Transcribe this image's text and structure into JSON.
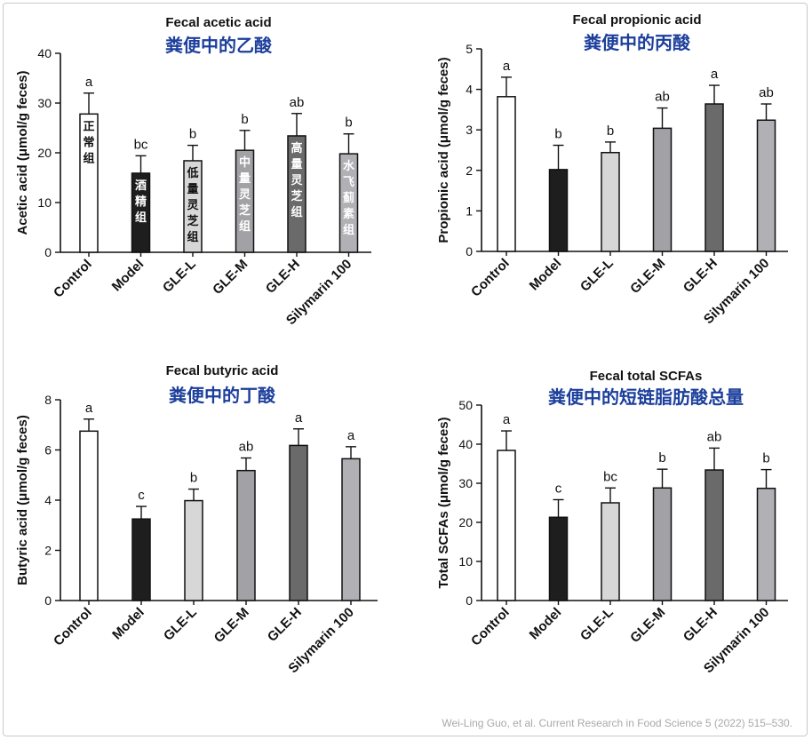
{
  "colors": {
    "bar_fills": [
      "#ffffff",
      "#1e1e1e",
      "#d7d7d7",
      "#a1a1a6",
      "#6a6a6a",
      "#b0b0b5"
    ],
    "in_bar_text": [
      "#111111",
      "#ffffff",
      "#111111",
      "#ffffff",
      "#ffffff",
      "#ffffff"
    ],
    "subtitle": "#1c3f9c"
  },
  "credit": "Wei-Ling Guo, et al. Current Research in Food Science 5 (2022) 515–530.",
  "chart_data": [
    {
      "type": "bar",
      "title": "Fecal acetic acid",
      "subtitle": "粪便中的乙酸",
      "ylabel": "Acetic acid (μmol/g feces)",
      "xlabel": "",
      "ylim": [
        0,
        40
      ],
      "yticks": [
        0,
        10,
        20,
        30,
        40
      ],
      "categories": [
        "Control",
        "Model",
        "GLE-L",
        "GLE-M",
        "GLE-H",
        "Silymarin 100"
      ],
      "values": [
        27.8,
        15.9,
        18.4,
        20.5,
        23.4,
        19.8
      ],
      "errors": [
        4.2,
        3.5,
        3.1,
        4.0,
        4.5,
        4.0
      ],
      "significance": [
        "a",
        "bc",
        "b",
        "b",
        "ab",
        "b"
      ],
      "bar_labels": [
        "正常组",
        "酒精组",
        "低量灵芝组",
        "中量灵芝组",
        "高量灵芝组",
        "水飞蓟素组"
      ]
    },
    {
      "type": "bar",
      "title": "Fecal propionic acid",
      "subtitle": "粪便中的丙酸",
      "ylabel": "Propionic acid (μmol/g feces)",
      "xlabel": "",
      "ylim": [
        0,
        5
      ],
      "yticks": [
        0,
        1,
        2,
        3,
        4,
        5
      ],
      "categories": [
        "Control",
        "Model",
        "GLE-L",
        "GLE-M",
        "GLE-H",
        "Silymarin 100"
      ],
      "values": [
        3.82,
        2.02,
        2.44,
        3.04,
        3.64,
        3.24
      ],
      "errors": [
        0.48,
        0.6,
        0.26,
        0.5,
        0.46,
        0.4
      ],
      "significance": [
        "a",
        "b",
        "b",
        "ab",
        "a",
        "ab"
      ]
    },
    {
      "type": "bar",
      "title": "Fecal butyric acid",
      "subtitle": "粪便中的丁酸",
      "ylabel": "Butyric acid (μmol/g feces)",
      "xlabel": "",
      "ylim": [
        0,
        8
      ],
      "yticks": [
        0,
        2,
        4,
        6,
        8
      ],
      "categories": [
        "Control",
        "Model",
        "GLE-L",
        "GLE-M",
        "GLE-H",
        "Silymarin 100"
      ],
      "values": [
        6.75,
        3.25,
        3.98,
        5.18,
        6.18,
        5.65
      ],
      "errors": [
        0.48,
        0.5,
        0.46,
        0.5,
        0.66,
        0.48
      ],
      "significance": [
        "a",
        "c",
        "b",
        "ab",
        "a",
        "a"
      ]
    },
    {
      "type": "bar",
      "title": "Fecal total SCFAs",
      "subtitle": "粪便中的短链脂肪酸总量",
      "ylabel": "Total SCFAs (μmol/g feces)",
      "xlabel": "",
      "ylim": [
        0,
        50
      ],
      "yticks": [
        0,
        10,
        20,
        30,
        40,
        50
      ],
      "categories": [
        "Control",
        "Model",
        "GLE-L",
        "GLE-M",
        "GLE-H",
        "Silymarin 100"
      ],
      "values": [
        38.4,
        21.3,
        25.0,
        28.8,
        33.4,
        28.7
      ],
      "errors": [
        5.0,
        4.5,
        3.8,
        4.8,
        5.6,
        4.8
      ],
      "significance": [
        "a",
        "c",
        "bc",
        "b",
        "ab",
        "b"
      ]
    }
  ]
}
